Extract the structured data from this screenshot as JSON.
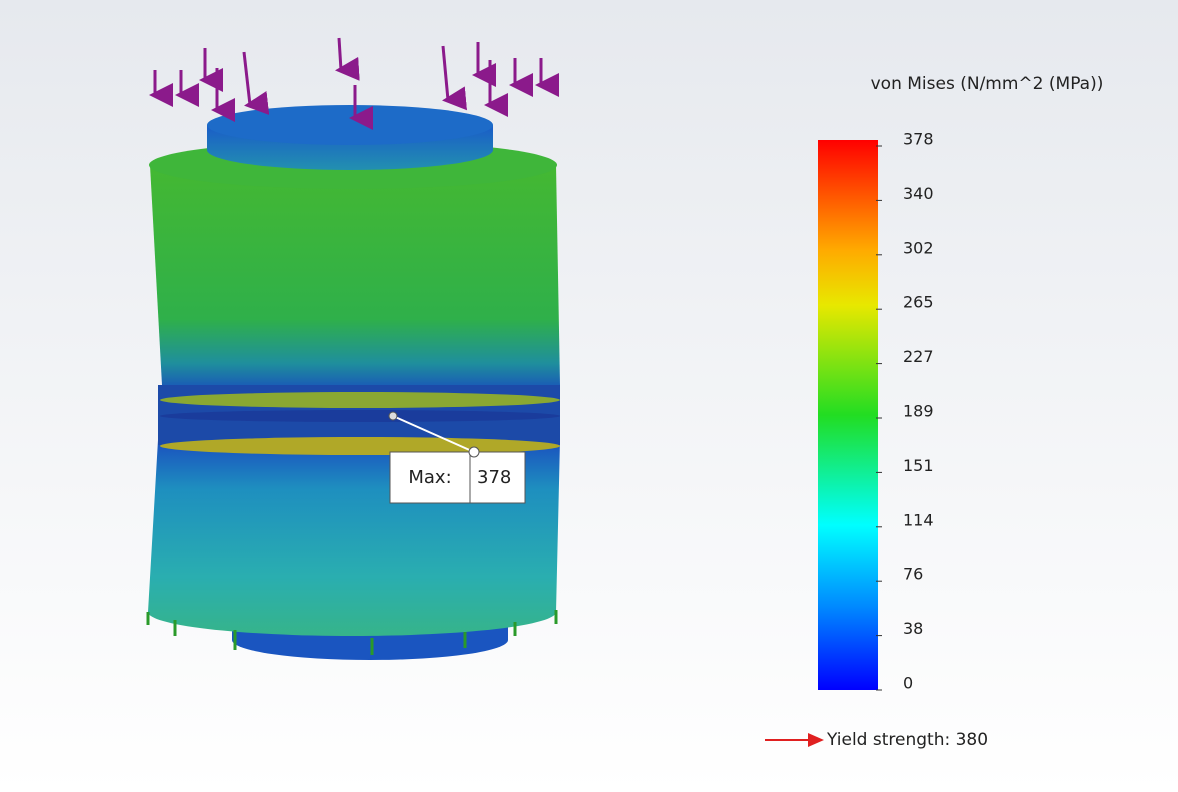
{
  "legend": {
    "title": "von Mises (N/mm^2 (MPa))",
    "ticks": [
      378,
      340,
      302,
      265,
      227,
      189,
      151,
      114,
      76,
      38,
      0
    ],
    "yield_label": "Yield strength: 380"
  },
  "probe": {
    "label": "Max:",
    "value": 378
  }
}
